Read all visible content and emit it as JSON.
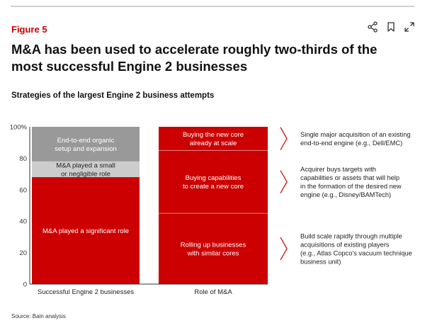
{
  "figure_label": "Figure 5",
  "headline": "M&A has been used to accelerate roughly two-thirds of the most successful Engine 2 businesses",
  "toolbar_icons": [
    "share-icon",
    "bookmark-icon",
    "expand-icon"
  ],
  "colors": {
    "red": "#cc0000",
    "gray": "#999999",
    "light_gray": "#cccccc",
    "accent": "#cc0000"
  },
  "source": "Source: Bain analysis",
  "chart_data": {
    "type": "bar",
    "stacked": true,
    "title": "Strategies of the largest Engine 2 business attempts",
    "categories": [
      "Successful Engine 2 businesses",
      "Role of M&A"
    ],
    "ylim": [
      0,
      100
    ],
    "yticks": [
      "0",
      "20",
      "40",
      "60",
      "80",
      "100%"
    ],
    "ytick_values": [
      0,
      20,
      40,
      60,
      80,
      100
    ],
    "grid": false,
    "bars": [
      {
        "category": "Successful Engine 2 businesses",
        "segments": [
          {
            "label": [
              "M&A played a significant role"
            ],
            "value": 68,
            "color": "#cc0000"
          },
          {
            "label": [
              "M&A played a small",
              "or negligible role"
            ],
            "value": 10,
            "color": "#cccccc"
          },
          {
            "label": [
              "End-to-end organic",
              "setup and expansion"
            ],
            "value": 22,
            "color": "#999999"
          }
        ]
      },
      {
        "category": "Role of M&A",
        "segments": [
          {
            "label": [
              "Rolling up businesses",
              "with similar cores"
            ],
            "value": 45,
            "color": "#cc0000"
          },
          {
            "label": [
              "Buying capabilities",
              "to create a new core"
            ],
            "value": 40,
            "color": "#cc0000"
          },
          {
            "label": [
              "Buying the new core",
              "already at scale"
            ],
            "value": 15,
            "color": "#cc0000"
          }
        ]
      }
    ],
    "annotations": [
      [
        "Single major acquisition of an existing",
        "end-to-end engine (e.g., Dell/EMC)"
      ],
      [
        "Acquirer buys targets with",
        "capabilities or assets that will help",
        "in the formation of the desired new",
        "engine (e.g., Disney/BAMTech)"
      ],
      [
        "Build scale rapidly through multiple",
        "acquisitions of existing players",
        "(e.g., Atlas Copco's vacuum technique",
        "business unit)"
      ]
    ]
  }
}
